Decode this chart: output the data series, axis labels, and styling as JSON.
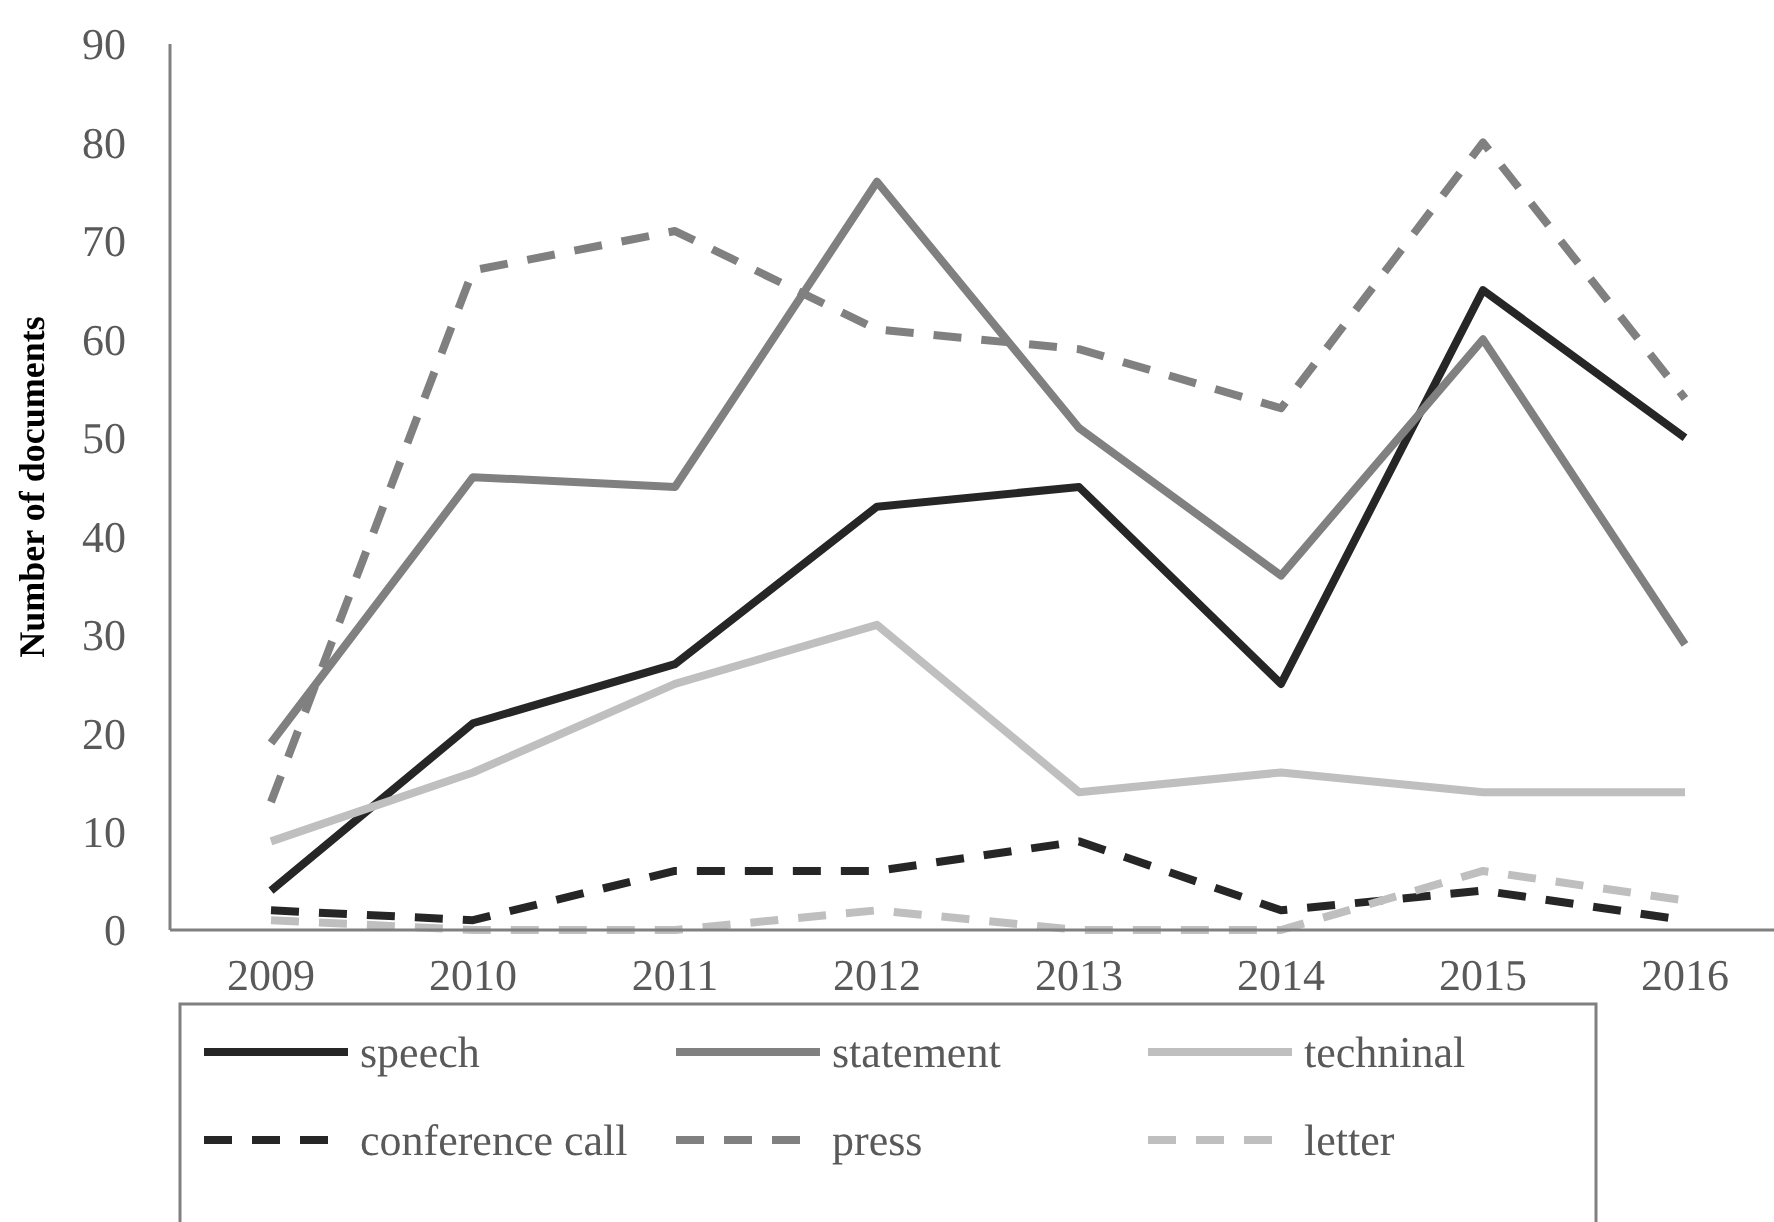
{
  "chart_data": {
    "type": "line",
    "ylabel": "Number of documents",
    "categories": [
      "2009",
      "2010",
      "2011",
      "2012",
      "2013",
      "2014",
      "2015",
      "2016"
    ],
    "ylim": [
      0,
      90
    ],
    "yticks": [
      0,
      10,
      20,
      30,
      40,
      50,
      60,
      70,
      80,
      90
    ],
    "grid": false,
    "legend": "bottom",
    "series": [
      {
        "name": "speech",
        "color": "#262626",
        "line_style": "solid",
        "values": [
          4,
          21,
          27,
          43,
          45,
          25,
          65,
          50
        ]
      },
      {
        "name": "statement",
        "color": "#808080",
        "line_style": "solid",
        "values": [
          19,
          46,
          45,
          76,
          51,
          36,
          60,
          29
        ]
      },
      {
        "name": "techninal",
        "color": "#bfbfbf",
        "line_style": "solid",
        "values": [
          9,
          16,
          25,
          31,
          14,
          16,
          14,
          14
        ]
      },
      {
        "name": "conference call",
        "color": "#262626",
        "line_style": "dashed",
        "values": [
          2,
          1,
          6,
          6,
          9,
          2,
          4,
          1
        ]
      },
      {
        "name": "press",
        "color": "#808080",
        "line_style": "dashed",
        "values": [
          13,
          67,
          71,
          61,
          59,
          53,
          80,
          54
        ]
      },
      {
        "name": "letter",
        "color": "#bfbfbf",
        "line_style": "dashed",
        "values": [
          1,
          0,
          0,
          2,
          0,
          0,
          6,
          3
        ]
      }
    ]
  }
}
